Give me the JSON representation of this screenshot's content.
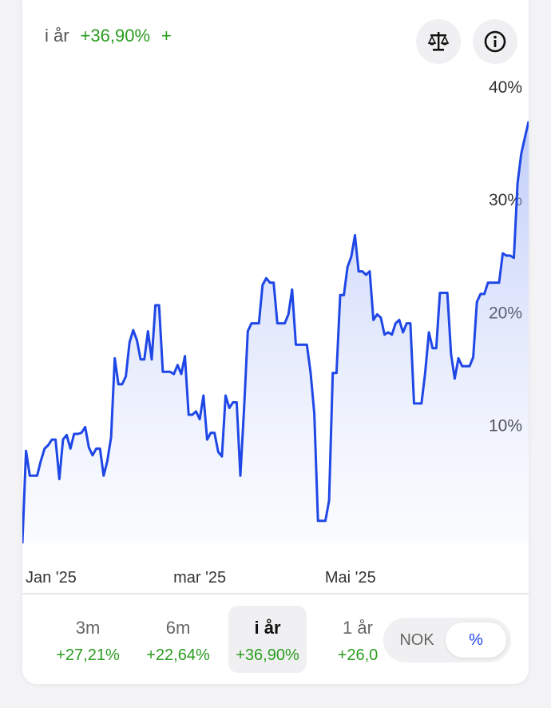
{
  "header": {
    "period_label": "i år",
    "return_value": "+36,90%",
    "return_extra": "+"
  },
  "icons": {
    "compare": "scale-icon",
    "info": "info-icon"
  },
  "colors": {
    "line": "#1f47e6",
    "positive": "#2a9d1f"
  },
  "chart_data": {
    "type": "area",
    "y_unit": "%",
    "y_ticks": [
      "40%",
      "30%",
      "20%",
      "10%"
    ],
    "y_tick_values": [
      40,
      30,
      20,
      10
    ],
    "x_tick_labels": [
      "Jan '25",
      "mar '25",
      "Mai '25"
    ],
    "x_tick_index": [
      0,
      40,
      81
    ],
    "ylim": [
      -0.5,
      40
    ],
    "series": [
      {
        "values": [
          -0.5,
          7.7,
          5.5,
          5.5,
          5.5,
          6.8,
          7.9,
          8.2,
          8.7,
          8.7,
          5.2,
          8.7,
          9.1,
          7.9,
          9.2,
          9.2,
          9.3,
          9.8,
          8.0,
          7.3,
          7.9,
          7.9,
          5.5,
          6.8,
          8.9,
          15.9,
          13.6,
          13.6,
          14.3,
          17.3,
          18.4,
          17.5,
          15.8,
          15.8,
          18.3,
          15.8,
          20.6,
          20.6,
          14.7,
          14.7,
          14.7,
          14.5,
          15.3,
          14.5,
          16.1,
          10.9,
          10.9,
          11.2,
          10.5,
          12.6,
          8.7,
          9.3,
          9.3,
          7.6,
          7.2,
          12.6,
          11.5,
          12.0,
          12.0,
          5.5,
          11.5,
          18.3,
          19.0,
          19.0,
          19.0,
          22.4,
          23.0,
          22.6,
          22.6,
          19.0,
          19.0,
          19.0,
          19.8,
          22.0,
          17.1,
          17.1,
          17.1,
          17.1,
          14.6,
          11.0,
          1.5,
          1.5,
          1.5,
          3.3,
          14.6,
          14.6,
          21.5,
          21.5,
          24.0,
          24.9,
          26.8,
          23.6,
          23.6,
          23.3,
          23.6,
          19.3,
          19.8,
          19.5,
          18.0,
          18.2,
          18.0,
          19.0,
          19.3,
          18.2,
          19.0,
          19.0,
          11.9,
          11.9,
          11.9,
          14.6,
          18.2,
          16.8,
          16.8,
          21.7,
          21.7,
          21.7,
          16.3,
          14.1,
          15.9,
          15.2,
          15.2,
          15.2,
          16.0,
          20.9,
          21.6,
          21.6,
          22.6,
          22.6,
          22.6,
          22.6,
          25.2,
          25.0,
          25.0,
          24.8,
          31.4,
          34.0,
          35.5,
          36.9
        ]
      }
    ]
  },
  "tabs": [
    {
      "label": "",
      "value": "%"
    },
    {
      "label": "3m",
      "value": "+27,21%"
    },
    {
      "label": "6m",
      "value": "+22,64%"
    },
    {
      "label": "i år",
      "value": "+36,90%",
      "active": true
    },
    {
      "label": "1 år",
      "value": "+26,0"
    }
  ],
  "toggle": {
    "nok": "NOK",
    "pct": "%"
  }
}
